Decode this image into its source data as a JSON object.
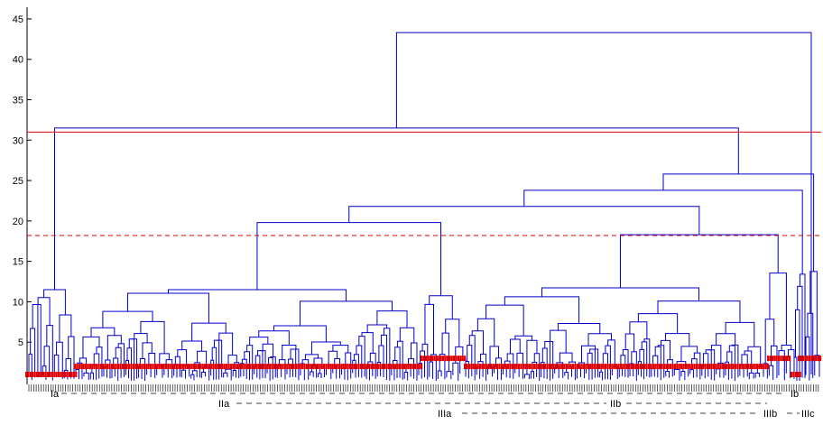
{
  "chart_data": {
    "type": "dendrogram",
    "ylim": [
      0,
      46
    ],
    "ytick_values": [
      5,
      10,
      15,
      20,
      25,
      30,
      35,
      40,
      45
    ],
    "ytick_labels": [
      "5",
      "10",
      "15",
      "20",
      "25",
      "30",
      "35",
      "40",
      "45"
    ],
    "thresholds": [
      {
        "value": 31.0,
        "style": "solid",
        "color": "#e00000"
      },
      {
        "value": 18.2,
        "style": "dashed",
        "color": "#e00000"
      }
    ],
    "major_merges": [
      {
        "height": 43.3
      },
      {
        "height": 31.5
      },
      {
        "height": 30.8
      },
      {
        "height": 25.8
      },
      {
        "height": 23.8
      },
      {
        "height": 21.8
      },
      {
        "height": 19.8
      },
      {
        "height": 18.3
      },
      {
        "height": 14.8
      }
    ],
    "cluster_labels": [
      {
        "id": "Ia",
        "text": "Ia",
        "row": 1
      },
      {
        "id": "Ib",
        "text": "Ib",
        "row": 1
      },
      {
        "id": "IIa",
        "text": "IIa",
        "row": 2
      },
      {
        "id": "IIb",
        "text": "IIb",
        "row": 2
      },
      {
        "id": "IIIa",
        "text": "IIIa",
        "row": 3
      },
      {
        "id": "IIIb",
        "text": "IIIb",
        "row": 3
      },
      {
        "id": "IIIc",
        "text": "IIIc",
        "row": 3
      }
    ],
    "colors": {
      "tree": "#0000cc",
      "marker": "#e00000",
      "axis": "#000000"
    }
  }
}
